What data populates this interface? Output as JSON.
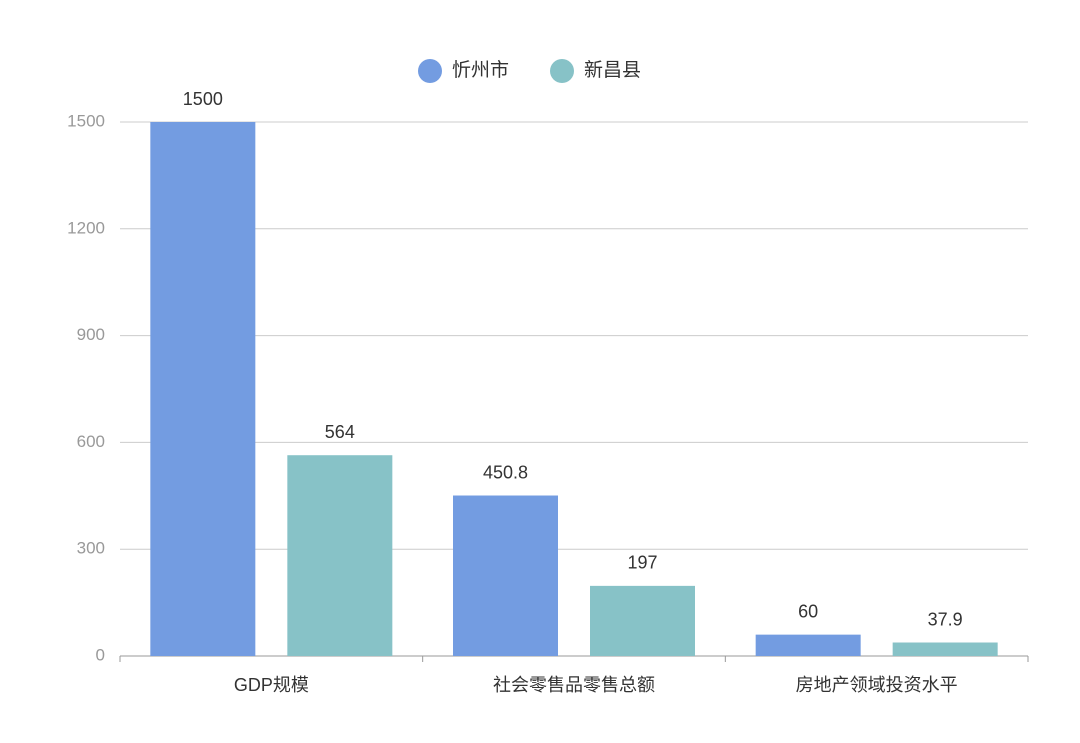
{
  "chart_data": {
    "type": "bar",
    "categories": [
      "GDP规模",
      "社会零售品零售总额",
      "房地产领域投资水平"
    ],
    "series": [
      {
        "name": "忻州市",
        "color": "#739ce1",
        "values": [
          1500,
          450.8,
          60
        ]
      },
      {
        "name": "新昌县",
        "color": "#87c2c7",
        "values": [
          564,
          197,
          37.9
        ]
      }
    ],
    "ylim": [
      0,
      1500
    ],
    "yticks": [
      0,
      300,
      600,
      900,
      1200,
      1500
    ],
    "grid": true,
    "legend": "top"
  }
}
